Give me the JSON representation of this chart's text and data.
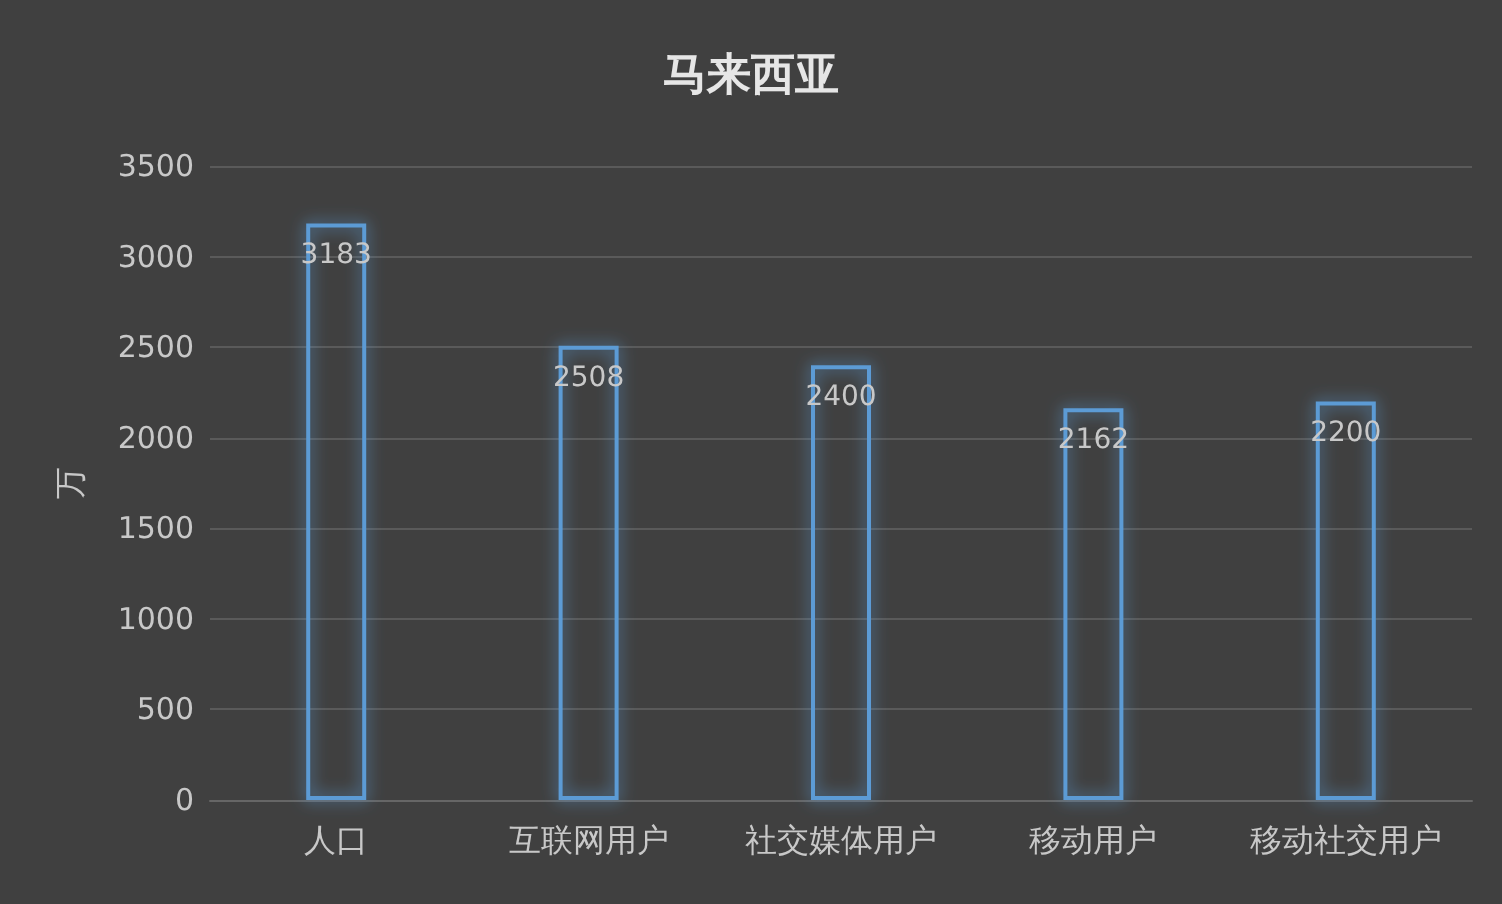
{
  "chart_data": {
    "type": "bar",
    "title": "马来西亚",
    "ylabel": "万",
    "categories": [
      "人口",
      "互联网用户",
      "社交媒体用户",
      "移动用户",
      "移动社交用户"
    ],
    "values": [
      3183,
      2508,
      2400,
      2162,
      2200
    ],
    "color": "#5b9bd5",
    "ylim": [
      0,
      3500
    ],
    "yticks": [
      0,
      500,
      1000,
      1500,
      2000,
      2500,
      3000,
      3500
    ],
    "grid": "y",
    "data_labels": true
  }
}
